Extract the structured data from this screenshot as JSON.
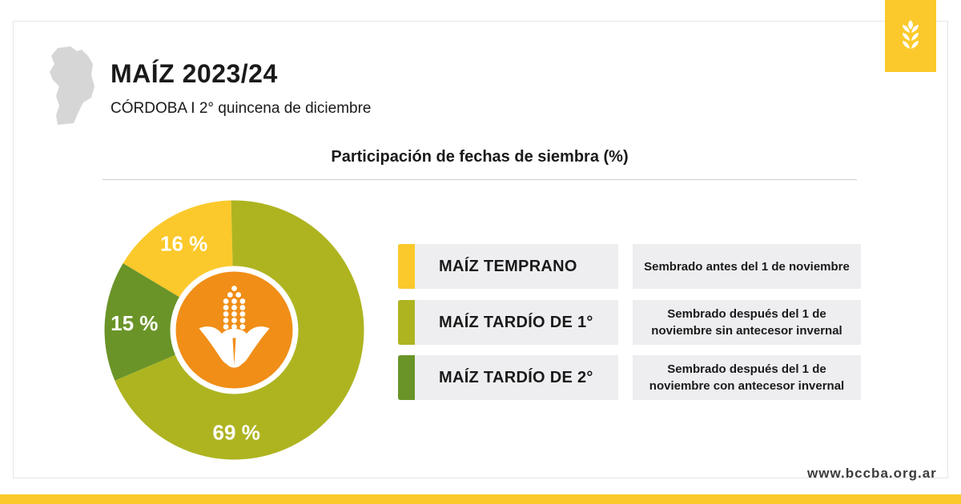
{
  "header": {
    "title": "MAÍZ 2023/24",
    "subtitle": "CÓRDOBA I 2° quincena de diciembre"
  },
  "badge": {
    "icon": "wheat-icon",
    "color": "#fbc92b"
  },
  "footer": {
    "website": "www.bccba.org.ar"
  },
  "chart_data": {
    "type": "pie",
    "title": "Participación de fechas de siembra (%)",
    "donut": true,
    "center_icon": "corn-icon",
    "slices": [
      {
        "name": "MAÍZ TEMPRANO",
        "value": 16,
        "label": "16 %",
        "color": "#fbc92b",
        "description": "Sembrado antes del 1 de noviembre"
      },
      {
        "name": "MAÍZ TARDÍO DE 1°",
        "value": 69,
        "label": "69 %",
        "color": "#aeb420",
        "description": "Sembrado después del 1 de noviembre sin antecesor invernal"
      },
      {
        "name": "MAÍZ TARDÍO DE 2°",
        "value": 15,
        "label": "15 %",
        "color": "#6a9428",
        "description": "Sembrado después del 1 de noviembre con antecesor invernal"
      }
    ]
  }
}
